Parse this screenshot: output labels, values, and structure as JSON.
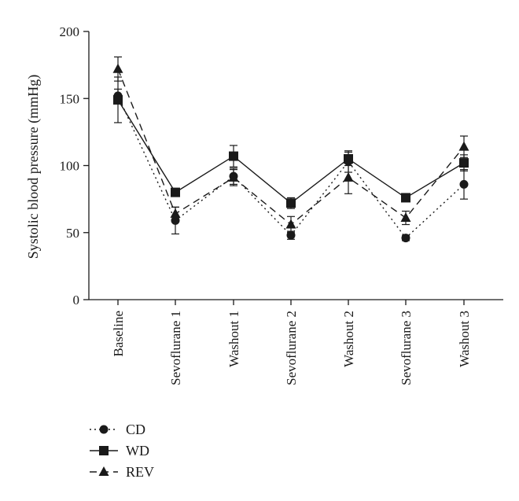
{
  "chart_data": {
    "type": "line",
    "title": "",
    "xlabel": "",
    "ylabel": "Systolic blood pressure (mmHg)",
    "ylim": [
      0,
      200
    ],
    "yticks": [
      0,
      50,
      100,
      150,
      200
    ],
    "categories": [
      "Baseline",
      "Sevoflurane 1",
      "Washout 1",
      "Sevoflurane 2",
      "Washout 2",
      "Sevoflurane 3",
      "Washout 3"
    ],
    "grid": false,
    "legend_position": "bottom-left",
    "series": [
      {
        "name": "CD",
        "marker": "circle",
        "line_style": "dotted",
        "values": [
          152,
          59,
          92,
          48,
          103,
          46,
          86
        ],
        "error": [
          5,
          10,
          6,
          3,
          8,
          2,
          11
        ]
      },
      {
        "name": "WD",
        "marker": "square",
        "line_style": "solid",
        "values": [
          149,
          80,
          107,
          72,
          105,
          76,
          102
        ],
        "error": [
          17,
          3,
          8,
          4,
          5,
          2,
          6
        ]
      },
      {
        "name": "REV",
        "marker": "triangle",
        "line_style": "dashed",
        "values": [
          172,
          64,
          91,
          56,
          91,
          61,
          114
        ],
        "error": [
          9,
          5,
          6,
          6,
          12,
          5,
          8
        ]
      }
    ]
  }
}
